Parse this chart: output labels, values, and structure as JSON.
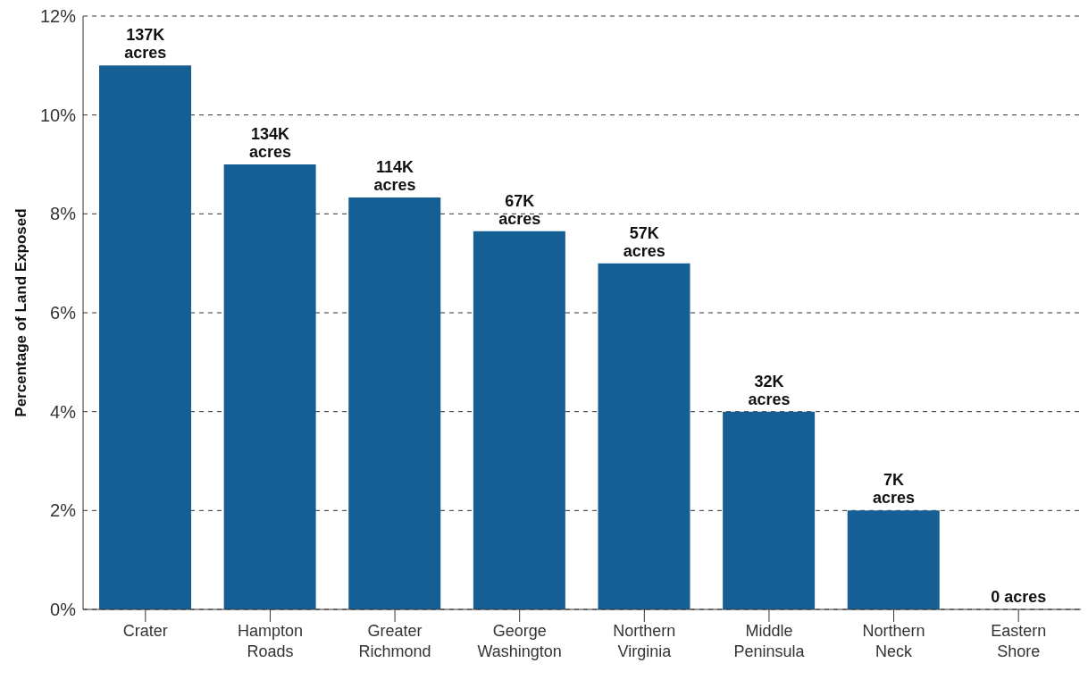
{
  "chart_data": {
    "type": "bar",
    "ylabel": "Percentage of Land Exposed",
    "categories": [
      "Crater",
      "Hampton Roads",
      "Greater Richmond",
      "George Washington",
      "Northern Virginia",
      "Middle Peninsula",
      "Northern Neck",
      "Eastern Shore"
    ],
    "values": [
      11.0,
      9.0,
      8.33,
      7.65,
      7.0,
      4.0,
      2.0,
      0
    ],
    "annotations": [
      {
        "text": "137K acres",
        "x": "Crater",
        "y": 11.0
      },
      {
        "text": "134K acres",
        "x": "Hampton Roads",
        "y": 9.0
      },
      {
        "text": "114K acres",
        "x": "Greater Richmond",
        "y": 8.33
      },
      {
        "text": "67K acres",
        "x": "George Washington",
        "y": 7.65
      },
      {
        "text": "57K acres",
        "x": "Northern Virginia",
        "y": 7.0
      },
      {
        "text": "32K acres",
        "x": "Middle Peninsula",
        "y": 4.0
      },
      {
        "text": "7K acres",
        "x": "Northern Neck",
        "y": 2.0
      },
      {
        "text": "0 acres",
        "x": "Eastern Shore",
        "y": 0
      }
    ],
    "color": "#155f94",
    "ylim": [
      0,
      12
    ],
    "yticks": [
      {
        "value": 0,
        "label": "0%"
      },
      {
        "value": 2,
        "label": "2%"
      },
      {
        "value": 4,
        "label": "4%"
      },
      {
        "value": 6,
        "label": "6%"
      },
      {
        "value": 8,
        "label": "8%"
      },
      {
        "value": 10,
        "label": "10%"
      },
      {
        "value": 12,
        "label": "12%"
      }
    ],
    "grid": "y"
  }
}
